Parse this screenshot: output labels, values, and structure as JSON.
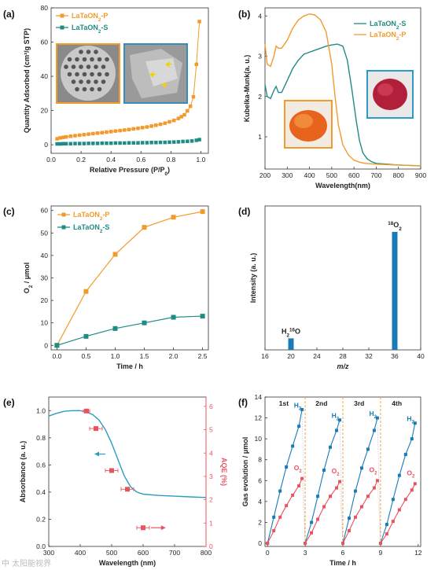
{
  "colors": {
    "orange": "#f39a2c",
    "teal": "#1f8c84",
    "blue": "#1a7bb7",
    "pink": "#e8545e",
    "cyan": "#2b9cc6"
  },
  "watermark": "中 太阳能视界",
  "chart_data": [
    {
      "id": "a",
      "panel_label": "(a)",
      "type": "scatter",
      "xlabel": "Relative Pressure (P/P",
      "xlabel_sub": "0",
      "xlabel_end": ")",
      "ylabel": "Quantity Adsorbed (cm³/g STP)",
      "xlim": [
        0,
        1.05
      ],
      "ylim": [
        -5,
        80
      ],
      "xticks": [
        0.0,
        0.2,
        0.4,
        0.6,
        0.8,
        1.0
      ],
      "xtick_labels": [
        "0.0",
        "0.2",
        "0.4",
        "0.6",
        "0.8",
        "1.0"
      ],
      "yticks": [
        0,
        20,
        40,
        60,
        80
      ],
      "ytick_labels": [
        "0",
        "20",
        "40",
        "60",
        "80"
      ],
      "legend_position": "top-left",
      "inset_images": [
        "sem-porous-particle",
        "sem-sheet-morphology"
      ],
      "series": [
        {
          "name": "LaTaON",
          "name_sub": "2",
          "name_end": "-P",
          "color": "orange",
          "x": [
            0.04,
            0.06,
            0.08,
            0.1,
            0.13,
            0.16,
            0.19,
            0.22,
            0.25,
            0.28,
            0.31,
            0.34,
            0.37,
            0.4,
            0.43,
            0.46,
            0.49,
            0.52,
            0.55,
            0.58,
            0.61,
            0.64,
            0.67,
            0.7,
            0.73,
            0.76,
            0.79,
            0.82,
            0.85,
            0.87,
            0.89,
            0.91,
            0.93,
            0.95,
            0.97,
            0.99
          ],
          "y": [
            3.5,
            4.0,
            4.3,
            4.6,
            5.0,
            5.3,
            5.6,
            5.9,
            6.2,
            6.5,
            6.8,
            7.1,
            7.4,
            7.7,
            8.0,
            8.3,
            8.6,
            8.9,
            9.3,
            9.6,
            10.0,
            10.4,
            10.9,
            11.4,
            12.0,
            12.6,
            13.4,
            14.2,
            15.4,
            16.4,
            17.5,
            19.8,
            22.5,
            28.0,
            47.0,
            72.0
          ]
        },
        {
          "name": "LaTaON",
          "name_sub": "2",
          "name_end": "-S",
          "color": "teal",
          "x": [
            0.04,
            0.06,
            0.08,
            0.1,
            0.13,
            0.16,
            0.19,
            0.22,
            0.25,
            0.28,
            0.31,
            0.34,
            0.37,
            0.4,
            0.43,
            0.46,
            0.49,
            0.52,
            0.55,
            0.58,
            0.61,
            0.64,
            0.67,
            0.7,
            0.73,
            0.76,
            0.79,
            0.82,
            0.85,
            0.88,
            0.91,
            0.94,
            0.97,
            0.99
          ],
          "y": [
            0.5,
            0.5,
            0.6,
            0.6,
            0.6,
            0.7,
            0.7,
            0.7,
            0.8,
            0.8,
            0.8,
            0.9,
            0.9,
            0.9,
            1.0,
            1.0,
            1.0,
            1.1,
            1.1,
            1.1,
            1.2,
            1.2,
            1.3,
            1.3,
            1.4,
            1.4,
            1.5,
            1.6,
            1.7,
            1.9,
            2.0,
            2.2,
            2.6,
            3.0
          ]
        }
      ]
    },
    {
      "id": "b",
      "panel_label": "(b)",
      "type": "line",
      "xlabel": "Wavelength(nm)",
      "ylabel": "Kubelka-Munk(a. u.)",
      "xlim": [
        200,
        900
      ],
      "ylim": [
        0.2,
        4.2
      ],
      "xticks": [
        200,
        300,
        400,
        500,
        600,
        700,
        800,
        900
      ],
      "xtick_labels": [
        "200",
        "300",
        "400",
        "500",
        "600",
        "700",
        "800",
        "900"
      ],
      "yticks": [
        1,
        2,
        3,
        4
      ],
      "ytick_labels": [
        "1",
        "2",
        "3",
        "4"
      ],
      "legend_position": "top-right",
      "inset_images": [
        "orange-powder-photo",
        "red-powder-photo"
      ],
      "series": [
        {
          "name": "LaTaON",
          "name_sub": "2",
          "name_end": "-S",
          "color": "teal",
          "x": [
            200,
            210,
            225,
            240,
            250,
            260,
            275,
            300,
            325,
            350,
            375,
            400,
            425,
            450,
            475,
            500,
            525,
            550,
            570,
            590,
            610,
            625,
            640,
            660,
            680,
            700,
            750,
            800,
            900
          ],
          "y": [
            2.3,
            2.0,
            1.95,
            2.15,
            2.25,
            2.1,
            2.1,
            2.4,
            2.7,
            2.9,
            3.05,
            3.1,
            3.15,
            3.2,
            3.25,
            3.28,
            3.3,
            3.25,
            2.9,
            2.2,
            1.4,
            0.9,
            0.6,
            0.45,
            0.38,
            0.34,
            0.32,
            0.3,
            0.28
          ]
        },
        {
          "name": "LaTaON",
          "name_sub": "2",
          "name_end": "-P",
          "color": "orange",
          "x": [
            200,
            210,
            225,
            240,
            250,
            260,
            275,
            300,
            325,
            350,
            375,
            400,
            425,
            450,
            475,
            500,
            515,
            530,
            550,
            575,
            600,
            625,
            650,
            700,
            750,
            800,
            900
          ],
          "y": [
            3.3,
            2.8,
            2.75,
            3.0,
            3.25,
            3.2,
            3.2,
            3.4,
            3.7,
            3.9,
            4.0,
            4.05,
            4.02,
            3.9,
            3.6,
            2.8,
            2.0,
            1.3,
            0.8,
            0.55,
            0.42,
            0.37,
            0.34,
            0.32,
            0.31,
            0.3,
            0.28
          ]
        }
      ]
    },
    {
      "id": "c",
      "panel_label": "(c)",
      "type": "line",
      "xlabel": "Time / h",
      "ylabel": "O",
      "ylabel_sub": "2",
      "ylabel_end": " / μmol",
      "xlim": [
        -0.1,
        2.6
      ],
      "ylim": [
        -2,
        62
      ],
      "xticks": [
        0.0,
        0.5,
        1.0,
        1.5,
        2.0,
        2.5
      ],
      "xtick_labels": [
        "0.0",
        "0.5",
        "1.0",
        "1.5",
        "2.0",
        "2.5"
      ],
      "yticks": [
        0,
        10,
        20,
        30,
        40,
        50,
        60
      ],
      "ytick_labels": [
        "0",
        "10",
        "20",
        "30",
        "40",
        "50",
        "60"
      ],
      "legend_position": "top-left",
      "series": [
        {
          "name": "LaTaON",
          "name_sub": "2",
          "name_end": "-P",
          "color": "orange",
          "x": [
            0.0,
            0.5,
            1.0,
            1.5,
            2.0,
            2.5
          ],
          "y": [
            0.0,
            24.0,
            40.5,
            52.5,
            57.0,
            59.5
          ]
        },
        {
          "name": "LaTaON",
          "name_sub": "2",
          "name_end": "-S",
          "color": "teal",
          "x": [
            0.0,
            0.5,
            1.0,
            1.5,
            2.0,
            2.5
          ],
          "y": [
            0.0,
            4.0,
            7.5,
            10.0,
            12.5,
            13.0
          ]
        }
      ]
    },
    {
      "id": "d",
      "panel_label": "(d)",
      "type": "bar",
      "xlabel": "m/z",
      "ylabel": "Intensity (a. u.)",
      "xlim": [
        16,
        40
      ],
      "ylim": [
        0,
        1.0
      ],
      "xticks": [
        16,
        20,
        24,
        28,
        32,
        36,
        40
      ],
      "xtick_labels": [
        "16",
        "20",
        "24",
        "28",
        "32",
        "36",
        "40"
      ],
      "color": "blue",
      "bars": [
        {
          "x": 20,
          "value": 0.08,
          "label_main": "H",
          "label_sub": "2",
          "label_sup": "16",
          "label_end": "O"
        },
        {
          "x": 36,
          "value": 0.82,
          "label_sup": "18",
          "label_main": "O",
          "label_sub": "2",
          "label_end": ""
        }
      ]
    },
    {
      "id": "e",
      "panel_label": "(e)",
      "type": "line",
      "xlabel": "Wavelength (nm)",
      "ylabel": "Absorbance (a. u.)",
      "ylabel_right": "AQE (%)",
      "xlim": [
        300,
        800
      ],
      "ylim": [
        0.0,
        1.1
      ],
      "ylim_right": [
        0,
        6.4
      ],
      "xticks": [
        300,
        400,
        500,
        600,
        700,
        800
      ],
      "xtick_labels": [
        "300",
        "400",
        "500",
        "600",
        "700",
        "800"
      ],
      "yticks": [
        0.0,
        0.2,
        0.4,
        0.6,
        0.8,
        1.0
      ],
      "ytick_labels": [
        "0.0",
        "0.2",
        "0.4",
        "0.6",
        "0.8",
        "1.0"
      ],
      "yticks_right": [
        0,
        1,
        2,
        3,
        4,
        5,
        6
      ],
      "ytick_labels_right": [
        "0",
        "1",
        "2",
        "3",
        "4",
        "5",
        "6"
      ],
      "absorbance": {
        "color": "cyan",
        "x": [
          300,
          325,
          350,
          375,
          400,
          420,
          440,
          460,
          480,
          500,
          520,
          540,
          560,
          580,
          600,
          650,
          700,
          750,
          800
        ],
        "y": [
          0.96,
          0.98,
          0.995,
          1.0,
          1.0,
          0.99,
          0.97,
          0.93,
          0.86,
          0.76,
          0.64,
          0.52,
          0.44,
          0.4,
          0.385,
          0.375,
          0.37,
          0.365,
          0.36
        ]
      },
      "aqe": {
        "color": "pink",
        "x": [
          420,
          450,
          500,
          550,
          600
        ],
        "y": [
          5.8,
          5.05,
          3.25,
          2.45,
          0.8
        ],
        "xerr": [
          10,
          20,
          20,
          20,
          20
        ]
      }
    },
    {
      "id": "f",
      "panel_label": "(f)",
      "type": "line",
      "xlabel": "Time / h",
      "ylabel": "Gas evolution / μmol",
      "xlim": [
        -0.2,
        12.2
      ],
      "ylim": [
        -0.3,
        14
      ],
      "xticks": [
        0,
        3,
        6,
        9,
        12
      ],
      "xtick_labels": [
        "0",
        "3",
        "6",
        "9",
        "12"
      ],
      "yticks": [
        0,
        2,
        4,
        6,
        8,
        10,
        12,
        14
      ],
      "ytick_labels": [
        "0",
        "2",
        "4",
        "6",
        "8",
        "10",
        "12",
        "14"
      ],
      "cycle_boundaries": [
        3,
        6,
        9
      ],
      "cycles": [
        "1st",
        "2nd",
        "3rd",
        "4th"
      ],
      "series": [
        {
          "name": "H",
          "name_sub": "2",
          "color": "blue",
          "x": [
            0,
            0.5,
            1,
            1.5,
            2,
            2.5,
            2.75,
            3,
            3.5,
            4,
            4.5,
            5,
            5.5,
            5.75,
            6,
            6.5,
            7,
            7.5,
            8,
            8.5,
            8.75,
            9,
            9.5,
            10,
            10.5,
            11,
            11.5,
            11.75
          ],
          "y": [
            0,
            2.5,
            5.0,
            7.3,
            9.3,
            11.2,
            12.8,
            0,
            2.0,
            4.5,
            7.0,
            9.2,
            10.8,
            11.8,
            0,
            2.4,
            5.0,
            7.2,
            9.0,
            10.8,
            12.0,
            0,
            1.8,
            4.2,
            6.5,
            8.5,
            10.0,
            11.5
          ]
        },
        {
          "name": "O",
          "name_sub": "2",
          "color": "pink",
          "x": [
            0,
            0.5,
            1,
            1.5,
            2,
            2.5,
            2.75,
            3,
            3.5,
            4,
            4.5,
            5,
            5.5,
            5.75,
            6,
            6.5,
            7,
            7.5,
            8,
            8.5,
            8.75,
            9,
            9.5,
            10,
            10.5,
            11,
            11.5,
            11.75
          ],
          "y": [
            0,
            1.2,
            2.5,
            3.6,
            4.6,
            5.5,
            6.2,
            0,
            1.0,
            2.3,
            3.5,
            4.5,
            5.3,
            5.9,
            0,
            1.2,
            2.5,
            3.5,
            4.5,
            5.3,
            6.0,
            0,
            0.9,
            2.1,
            3.2,
            4.2,
            5.1,
            5.7
          ]
        }
      ]
    }
  ]
}
